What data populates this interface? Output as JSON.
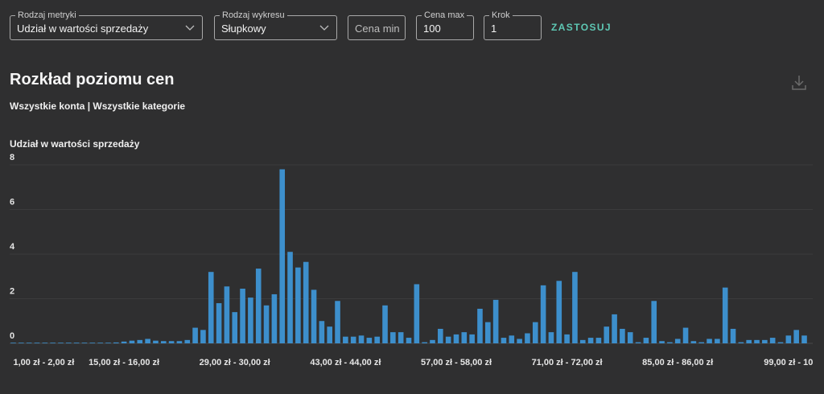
{
  "controls": {
    "metric": {
      "legend": "Rodzaj metryki",
      "value": "Udział w wartości sprzedaży"
    },
    "chart_type": {
      "legend": "Rodzaj wykresu",
      "value": "Słupkowy"
    },
    "price_min": {
      "placeholder": "Cena min"
    },
    "price_max": {
      "legend": "Cena max",
      "value": "100"
    },
    "step": {
      "legend": "Krok",
      "value": "1"
    },
    "apply_label": "ZASTOSUJ"
  },
  "header": {
    "title": "Rozkład poziomu cen",
    "subtitle": "Wszystkie konta | Wszystkie kategorie"
  },
  "icons": {
    "download": "download-icon",
    "chevron": "chevron-down-icon"
  },
  "colors": {
    "bar": "#3d8fcc",
    "accent": "#5ec8b4",
    "background": "#2f2f30"
  },
  "chart_data": {
    "type": "bar",
    "ylabel": "Udział w wartości sprzedaży",
    "ylim": [
      0,
      8
    ],
    "yticks": [
      0,
      2,
      4,
      6,
      8
    ],
    "grid": true,
    "x_tick_labels": [
      "1,00 zł - 2,00 zł",
      "15,00 zł - 16,00 zł",
      "29,00 zł - 30,00 zł",
      "43,00 zł - 44,00 zł",
      "57,00 zł - 58,00 zł",
      "71,00 zł - 72,00 zł",
      "85,00 zł - 86,00 zł",
      "99,00 zł - 10"
    ],
    "x_tick_indices": [
      0,
      14,
      28,
      42,
      56,
      70,
      84,
      98
    ],
    "first_bin_start": 1,
    "bin_width": 1,
    "values": [
      0.02,
      0.01,
      0.01,
      0.01,
      0.02,
      0.01,
      0.01,
      0.03,
      0.03,
      0.02,
      0.01,
      0.02,
      0.02,
      0.04,
      0.08,
      0.12,
      0.15,
      0.2,
      0.12,
      0.1,
      0.1,
      0.1,
      0.15,
      0.7,
      0.6,
      3.2,
      1.8,
      2.55,
      1.4,
      2.45,
      2.05,
      3.35,
      1.7,
      2.2,
      7.8,
      4.1,
      3.4,
      3.65,
      2.4,
      1.0,
      0.75,
      1.9,
      0.3,
      0.3,
      0.35,
      0.25,
      0.3,
      1.7,
      0.5,
      0.5,
      0.25,
      2.65,
      0.05,
      0.15,
      0.65,
      0.3,
      0.4,
      0.5,
      0.4,
      1.55,
      0.95,
      1.95,
      0.25,
      0.35,
      0.2,
      0.45,
      0.95,
      2.6,
      0.5,
      2.8,
      0.4,
      3.2,
      0.15,
      0.25,
      0.25,
      0.75,
      1.3,
      0.65,
      0.5,
      0.05,
      0.25,
      1.9,
      0.1,
      0.05,
      0.2,
      0.7,
      0.1,
      0.05,
      0.2,
      0.2,
      2.5,
      0.65,
      0.05,
      0.15,
      0.15,
      0.15,
      0.25,
      0.05,
      0.35,
      0.6,
      0.35
    ]
  }
}
